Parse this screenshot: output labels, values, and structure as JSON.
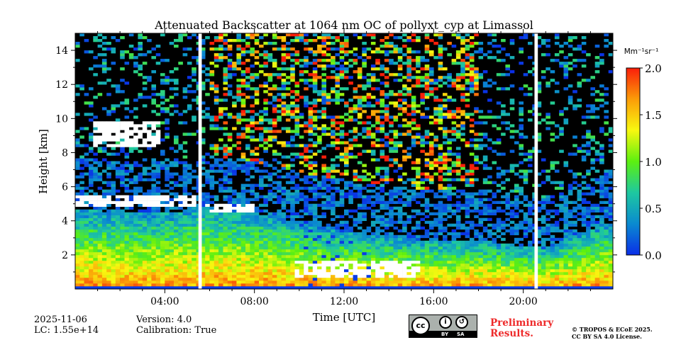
{
  "chart_data": {
    "type": "heatmap",
    "title": "Attenuated Backscatter at 1064 nm OC of pollyxt_cyp at Limassol",
    "xlabel": "Time [UTC]",
    "ylabel": "Height [km]",
    "xlim_hours": [
      0,
      24
    ],
    "ylim_km": [
      0,
      15
    ],
    "x_tick_labels": [
      "04:00",
      "08:00",
      "12:00",
      "16:00",
      "20:00"
    ],
    "x_tick_hours": [
      4,
      8,
      12,
      16,
      20
    ],
    "y_ticks": [
      2,
      4,
      6,
      8,
      10,
      12,
      14
    ],
    "colorbar": {
      "label": "Mm⁻¹sr⁻¹",
      "range": [
        0.0,
        2.0
      ],
      "ticks": [
        "0.0",
        "0.5",
        "1.0",
        "1.5",
        "2.0"
      ],
      "colormap": [
        "#0a2ee8",
        "#0a8ad0",
        "#1ec8a0",
        "#5cf010",
        "#f8f810",
        "#fb9c08",
        "#fa1e0a"
      ]
    },
    "aerosol_layer_top_km_hourly": [
      4.6,
      4.6,
      4.5,
      4.5,
      4.5,
      4.6,
      4.8,
      4.7,
      4.5,
      4.2,
      3.9,
      3.6,
      3.4,
      3.2,
      3.0,
      2.9,
      2.9,
      2.8,
      2.9,
      2.7,
      2.5,
      2.4,
      3.0,
      3.5,
      3.9
    ],
    "clouds": [
      {
        "t_start": 0.0,
        "t_end": 5.5,
        "base_km": 4.8,
        "top_km": 5.5
      },
      {
        "t_start": 5.7,
        "t_end": 8.0,
        "base_km": 4.5,
        "top_km": 5.0
      },
      {
        "t_start": 0.8,
        "t_end": 3.8,
        "base_km": 8.3,
        "top_km": 9.9
      },
      {
        "t_start": 9.8,
        "t_end": 15.5,
        "base_km": 0.6,
        "top_km": 1.6
      }
    ],
    "data_gaps_hours": [
      [
        5.5,
        5.65
      ],
      [
        20.5,
        20.65
      ]
    ]
  },
  "footer": {
    "date": "2025-11-06",
    "lc": "LC: 1.55e+14",
    "version": "Version: 4.0",
    "calibration": "Calibration: True",
    "preliminary_1": "Preliminary",
    "preliminary_2": "Results.",
    "copyright": "© TROPOS & ECoE 2025.",
    "license": "CC BY SA 4.0 License.",
    "cc_by": "BY",
    "cc_sa": "SA",
    "cc_mark": "cc"
  }
}
